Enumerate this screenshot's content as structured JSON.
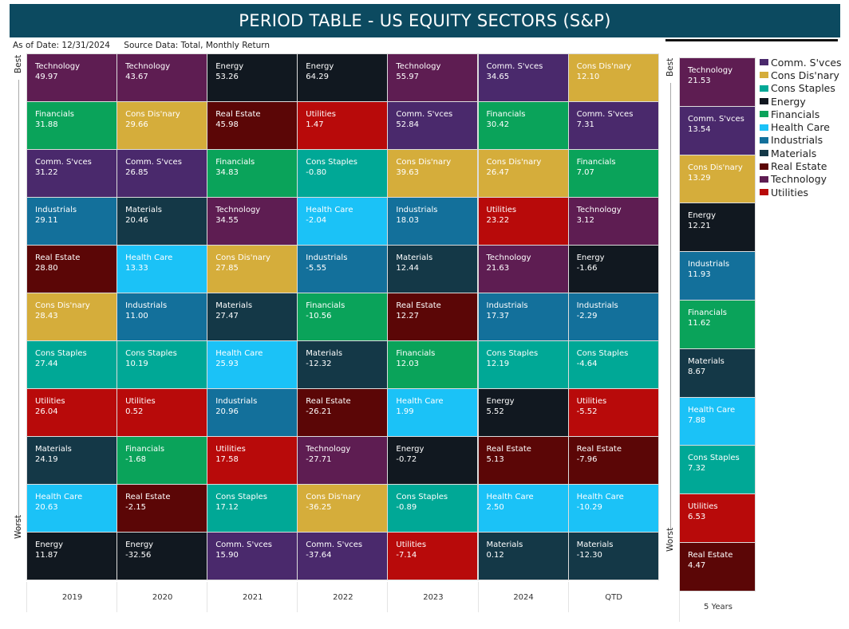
{
  "title": "PERIOD TABLE - US EQUITY SECTORS (S&P)",
  "as_of": "As of Date: 12/31/2024",
  "source": "Source Data: Total, Monthly Return",
  "best_label": "Best",
  "worst_label": "Worst",
  "colors": {
    "Technology": "#5e1d52",
    "Comm. S'vces": "#4a296c",
    "Cons Dis'nary": "#d5ad3b",
    "Cons Staples": "#00a896",
    "Energy": "#111820",
    "Financials": "#0aa35a",
    "Health Care": "#1bc2f7",
    "Industrials": "#13709b",
    "Materials": "#143847",
    "Real Estate": "#5b0606",
    "Utilities": "#b80a0a"
  },
  "chart_data": {
    "type": "table",
    "columns": [
      {
        "label": "2019",
        "cells": [
          [
            "Technology",
            "49.97"
          ],
          [
            "Financials",
            "31.88"
          ],
          [
            "Comm. S'vces",
            "31.22"
          ],
          [
            "Industrials",
            "29.11"
          ],
          [
            "Real Estate",
            "28.80"
          ],
          [
            "Cons Dis'nary",
            "28.43"
          ],
          [
            "Cons Staples",
            "27.44"
          ],
          [
            "Utilities",
            "26.04"
          ],
          [
            "Materials",
            "24.19"
          ],
          [
            "Health Care",
            "20.63"
          ],
          [
            "Energy",
            "11.87"
          ]
        ]
      },
      {
        "label": "2020",
        "cells": [
          [
            "Technology",
            "43.67"
          ],
          [
            "Cons Dis'nary",
            "29.66"
          ],
          [
            "Comm. S'vces",
            "26.85"
          ],
          [
            "Materials",
            "20.46"
          ],
          [
            "Health Care",
            "13.33"
          ],
          [
            "Industrials",
            "11.00"
          ],
          [
            "Cons Staples",
            "10.19"
          ],
          [
            "Utilities",
            "0.52"
          ],
          [
            "Financials",
            "-1.68"
          ],
          [
            "Real Estate",
            "-2.15"
          ],
          [
            "Energy",
            "-32.56"
          ]
        ]
      },
      {
        "label": "2021",
        "cells": [
          [
            "Energy",
            "53.26"
          ],
          [
            "Real Estate",
            "45.98"
          ],
          [
            "Financials",
            "34.83"
          ],
          [
            "Technology",
            "34.55"
          ],
          [
            "Cons Dis'nary",
            "27.85"
          ],
          [
            "Materials",
            "27.47"
          ],
          [
            "Health Care",
            "25.93"
          ],
          [
            "Industrials",
            "20.96"
          ],
          [
            "Utilities",
            "17.58"
          ],
          [
            "Cons Staples",
            "17.12"
          ],
          [
            "Comm. S'vces",
            "15.90"
          ]
        ]
      },
      {
        "label": "2022",
        "cells": [
          [
            "Energy",
            "64.29"
          ],
          [
            "Utilities",
            "1.47"
          ],
          [
            "Cons Staples",
            "-0.80"
          ],
          [
            "Health Care",
            "-2.04"
          ],
          [
            "Industrials",
            "-5.55"
          ],
          [
            "Financials",
            "-10.56"
          ],
          [
            "Materials",
            "-12.32"
          ],
          [
            "Real Estate",
            "-26.21"
          ],
          [
            "Technology",
            "-27.71"
          ],
          [
            "Cons Dis'nary",
            "-36.25"
          ],
          [
            "Comm. S'vces",
            "-37.64"
          ]
        ]
      },
      {
        "label": "2023",
        "cells": [
          [
            "Technology",
            "55.97"
          ],
          [
            "Comm. S'vces",
            "52.84"
          ],
          [
            "Cons Dis'nary",
            "39.63"
          ],
          [
            "Industrials",
            "18.03"
          ],
          [
            "Materials",
            "12.44"
          ],
          [
            "Real Estate",
            "12.27"
          ],
          [
            "Financials",
            "12.03"
          ],
          [
            "Health Care",
            "1.99"
          ],
          [
            "Energy",
            "-0.72"
          ],
          [
            "Cons Staples",
            "-0.89"
          ],
          [
            "Utilities",
            "-7.14"
          ]
        ]
      },
      {
        "label": "2024",
        "cells": [
          [
            "Comm. S'vces",
            "34.65"
          ],
          [
            "Financials",
            "30.42"
          ],
          [
            "Cons Dis'nary",
            "26.47"
          ],
          [
            "Utilities",
            "23.22"
          ],
          [
            "Technology",
            "21.63"
          ],
          [
            "Industrials",
            "17.37"
          ],
          [
            "Cons Staples",
            "12.19"
          ],
          [
            "Energy",
            "5.52"
          ],
          [
            "Real Estate",
            "5.13"
          ],
          [
            "Health Care",
            "2.50"
          ],
          [
            "Materials",
            "0.12"
          ]
        ]
      },
      {
        "label": "QTD",
        "cells": [
          [
            "Cons Dis'nary",
            "12.10"
          ],
          [
            "Comm. S'vces",
            "7.31"
          ],
          [
            "Financials",
            "7.07"
          ],
          [
            "Technology",
            "3.12"
          ],
          [
            "Energy",
            "-1.66"
          ],
          [
            "Industrials",
            "-2.29"
          ],
          [
            "Cons Staples",
            "-4.64"
          ],
          [
            "Utilities",
            "-5.52"
          ],
          [
            "Real Estate",
            "-7.96"
          ],
          [
            "Health Care",
            "-10.29"
          ],
          [
            "Materials",
            "-12.30"
          ]
        ]
      }
    ],
    "five_years": {
      "label": "5 Years",
      "cells": [
        [
          "Technology",
          "21.53"
        ],
        [
          "Comm. S'vces",
          "13.54"
        ],
        [
          "Cons Dis'nary",
          "13.29"
        ],
        [
          "Energy",
          "12.21"
        ],
        [
          "Industrials",
          "11.93"
        ],
        [
          "Financials",
          "11.62"
        ],
        [
          "Materials",
          "8.67"
        ],
        [
          "Health Care",
          "7.88"
        ],
        [
          "Cons Staples",
          "7.32"
        ],
        [
          "Utilities",
          "6.53"
        ],
        [
          "Real Estate",
          "4.47"
        ]
      ]
    },
    "legend": [
      "Comm. S'vces",
      "Cons Dis'nary",
      "Cons Staples",
      "Energy",
      "Financials",
      "Health Care",
      "Industrials",
      "Materials",
      "Real Estate",
      "Technology",
      "Utilities"
    ]
  }
}
